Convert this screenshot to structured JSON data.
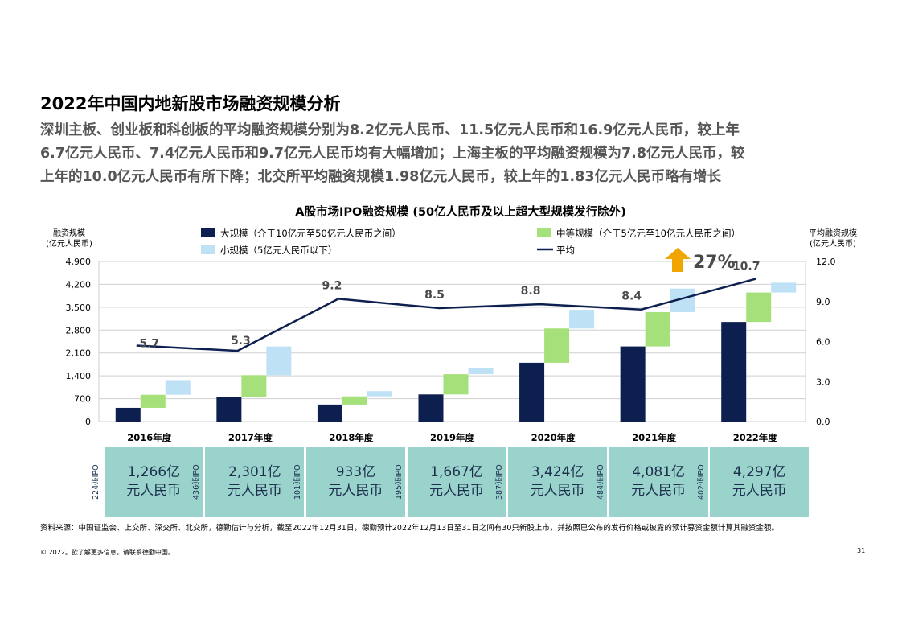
{
  "title": "2022年中国内地新股市场融资规模分析",
  "subtitle_lines": [
    "深圳主板、创业板和科创板的平均融资规模分别为8.2亿元人民币、11.5亿元人民币和16.9亿元人民币，较上年",
    "6.7亿元人民币、7.4亿元人民币和9.7亿元人民币均有大幅增加；上海主板的平均融资规模为7.8亿元人民币，较",
    "上年的10.0亿元人民币有所下降；北交所平均融资规模1.98亿元人民币，较上年的1.83亿元人民币略有增长"
  ],
  "chart_data": {
    "type": "bar",
    "title": "A股市场IPO融资规模 (50亿人民币及以上超大型规模发行除外)",
    "ylabel_left": [
      "融资规模",
      "(亿元人民币)"
    ],
    "ylabel_right": [
      "平均融资规模",
      "(亿元人民币)"
    ],
    "ylim_left": [
      0,
      4900
    ],
    "ylim_right": [
      0,
      12
    ],
    "yticks_left": [
      "0",
      "700",
      "1,400",
      "2,100",
      "2,800",
      "3,500",
      "4,200",
      "4,900"
    ],
    "yticks_right": [
      "0.0",
      "3.0",
      "6.0",
      "9.0",
      "12.0"
    ],
    "categories": [
      "2016年度",
      "2017年度",
      "2018年度",
      "2019年度",
      "2020年度",
      "2021年度",
      "2022年度"
    ],
    "series": [
      {
        "name": "大规模（介于10亿元至50亿元人民币之间）",
        "color": "#0c1f4f",
        "start": [
          0,
          0,
          0,
          0,
          0,
          0,
          0
        ],
        "values": [
          420,
          740,
          520,
          830,
          1800,
          2300,
          3050
        ]
      },
      {
        "name": "中等规模（介于5亿元至10亿元人民币之间）",
        "color": "#a6e07a",
        "start": [
          420,
          740,
          520,
          830,
          1800,
          2300,
          3050
        ],
        "values": [
          400,
          680,
          250,
          620,
          1050,
          1050,
          900
        ]
      },
      {
        "name": "小规模（5亿元人民币以下）",
        "color": "#bfe1f6",
        "start": [
          820,
          1420,
          770,
          1450,
          2850,
          3350,
          3950
        ],
        "values": [
          450,
          880,
          160,
          200,
          570,
          720,
          300
        ]
      }
    ],
    "line_series": {
      "name": "平均",
      "color": "#0c1f4f",
      "values": [
        5.7,
        5.3,
        9.2,
        8.5,
        8.8,
        8.4,
        10.7
      ]
    },
    "annotations": {
      "growth": "27%",
      "growth_color": "#f0a500"
    },
    "legend_position": "top"
  },
  "ipo_summary": [
    {
      "count": "224宗IPO",
      "amount": "1,266亿",
      "unit": "元人民币"
    },
    {
      "count": "436宗IPO",
      "amount": "2,301亿",
      "unit": "元人民币"
    },
    {
      "count": "101宗IPO",
      "amount": "933亿",
      "unit": "元人民币"
    },
    {
      "count": "195宗IPO",
      "amount": "1,667亿",
      "unit": "元人民币"
    },
    {
      "count": "387宗IPO",
      "amount": "3,424亿",
      "unit": "元人民币"
    },
    {
      "count": "484宗IPO",
      "amount": "4,081亿",
      "unit": "元人民币"
    },
    {
      "count": "402宗IPO",
      "amount": "4,297亿",
      "unit": "元人民币"
    }
  ],
  "source_note": "资料来源：中国证监会、上交所、深交所、北交所，德勤估计与分析，截至2022年12月31日，德勤预计2022年12月13日至31日之间有30只新股上市，并按照已公布的发行价格或披露的预计募资金额计算其融资金额。",
  "copyright": "© 2022。欲了解更多信息，请联系德勤中国。",
  "page_number": "31"
}
